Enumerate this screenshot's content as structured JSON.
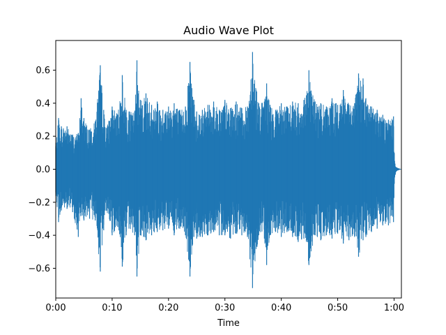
{
  "chart_data": {
    "type": "line",
    "title": "Audio Wave Plot",
    "xlabel": "Time",
    "ylabel": "",
    "xlim": [
      0,
      61.3
    ],
    "ylim": [
      -0.78,
      0.78
    ],
    "x_ticks": [
      0,
      10,
      20,
      30,
      40,
      50,
      60
    ],
    "x_tick_labels": [
      "0:00",
      "0:10",
      "0:20",
      "0:30",
      "0:40",
      "0:50",
      "1:00"
    ],
    "y_ticks": [
      -0.6,
      -0.4,
      -0.2,
      0.0,
      0.2,
      0.4,
      0.6
    ],
    "y_tick_labels": [
      "−0.6",
      "−0.4",
      "−0.2",
      "0.0",
      "0.2",
      "0.4",
      "0.6"
    ],
    "grid": false,
    "legend": "none",
    "colors": {
      "series": "#1f77b4",
      "axes": "#000000",
      "background": "#ffffff"
    },
    "series": [
      {
        "x": [
          0,
          0.5,
          1,
          2,
          3,
          4,
          4.5,
          5,
          6,
          7,
          7.9,
          8.5,
          9,
          10,
          11,
          11.8,
          12.5,
          13,
          14,
          14.4,
          15,
          16,
          17,
          18,
          19,
          20,
          21,
          22,
          23,
          23.8,
          24.5,
          25,
          26,
          27,
          28,
          29,
          30,
          31,
          32,
          33,
          34,
          34.9,
          36,
          37,
          37.4,
          38,
          39,
          40,
          41,
          42,
          43,
          44,
          44.9,
          46,
          47,
          48,
          49,
          50,
          51,
          52,
          53,
          53.7,
          54.5,
          55,
          56,
          57,
          58,
          59,
          59.9,
          60.1,
          60.5,
          61.3
        ],
        "envelope_max": [
          0.14,
          0.31,
          0.26,
          0.26,
          0.21,
          0.22,
          0.43,
          0.31,
          0.24,
          0.29,
          0.63,
          0.36,
          0.25,
          0.38,
          0.33,
          0.57,
          0.36,
          0.35,
          0.35,
          0.66,
          0.42,
          0.46,
          0.39,
          0.41,
          0.36,
          0.38,
          0.4,
          0.36,
          0.38,
          0.65,
          0.42,
          0.35,
          0.36,
          0.39,
          0.41,
          0.36,
          0.42,
          0.37,
          0.41,
          0.37,
          0.38,
          0.71,
          0.4,
          0.41,
          0.52,
          0.39,
          0.36,
          0.4,
          0.38,
          0.41,
          0.4,
          0.42,
          0.6,
          0.41,
          0.4,
          0.38,
          0.43,
          0.39,
          0.48,
          0.39,
          0.4,
          0.58,
          0.55,
          0.43,
          0.38,
          0.36,
          0.33,
          0.3,
          0.32,
          0.05,
          0.01,
          0.0
        ],
        "envelope_min": [
          -0.14,
          -0.32,
          -0.25,
          -0.24,
          -0.26,
          -0.41,
          -0.28,
          -0.31,
          -0.3,
          -0.31,
          -0.62,
          -0.37,
          -0.25,
          -0.4,
          -0.35,
          -0.59,
          -0.4,
          -0.36,
          -0.4,
          -0.65,
          -0.4,
          -0.43,
          -0.4,
          -0.38,
          -0.37,
          -0.36,
          -0.4,
          -0.36,
          -0.4,
          -0.65,
          -0.41,
          -0.42,
          -0.41,
          -0.4,
          -0.38,
          -0.4,
          -0.4,
          -0.42,
          -0.39,
          -0.4,
          -0.41,
          -0.72,
          -0.4,
          -0.42,
          -0.58,
          -0.4,
          -0.38,
          -0.41,
          -0.38,
          -0.41,
          -0.44,
          -0.42,
          -0.58,
          -0.4,
          -0.43,
          -0.4,
          -0.42,
          -0.39,
          -0.45,
          -0.43,
          -0.41,
          -0.53,
          -0.43,
          -0.41,
          -0.38,
          -0.36,
          -0.34,
          -0.34,
          -0.32,
          -0.05,
          -0.01,
          0.0
        ]
      }
    ]
  }
}
